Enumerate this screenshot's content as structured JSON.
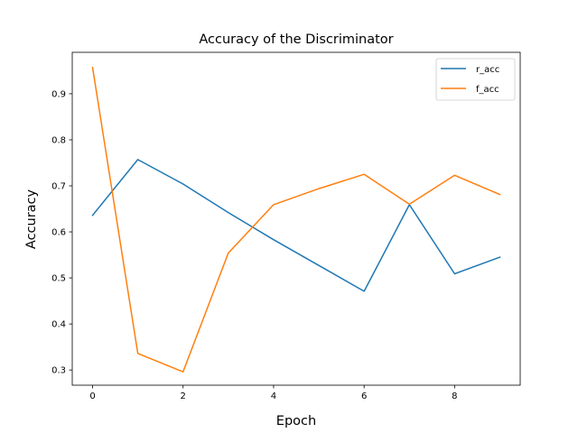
{
  "chart_data": {
    "type": "line",
    "title": "Accuracy of the Discriminator",
    "xlabel": "Epoch",
    "ylabel": "Accuracy",
    "x": [
      0,
      1,
      2,
      3,
      4,
      5,
      6,
      7,
      8,
      9
    ],
    "xlim": [
      -0.45,
      9.45
    ],
    "ylim": [
      0.267,
      0.99
    ],
    "xticks": [
      0,
      2,
      4,
      6,
      8
    ],
    "yticks": [
      0.3,
      0.4,
      0.5,
      0.6,
      0.7,
      0.8,
      0.9
    ],
    "xtick_labels": [
      "0",
      "2",
      "4",
      "6",
      "8"
    ],
    "ytick_labels": [
      "0.3",
      "0.4",
      "0.5",
      "0.6",
      "0.7",
      "0.8",
      "0.9"
    ],
    "grid": false,
    "legend_position": "top-right",
    "series": [
      {
        "name": "r_acc",
        "color": "#1f77b4",
        "values": [
          0.636,
          0.757,
          0.704,
          0.642,
          0.583,
          0.527,
          0.471,
          0.659,
          0.509,
          0.545
        ]
      },
      {
        "name": "f_acc",
        "color": "#ff7f0e",
        "values": [
          0.957,
          0.336,
          0.296,
          0.554,
          0.659,
          0.694,
          0.725,
          0.66,
          0.723,
          0.681
        ]
      }
    ]
  }
}
